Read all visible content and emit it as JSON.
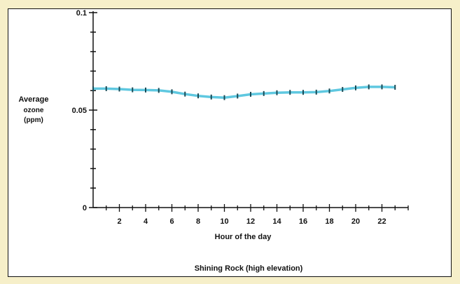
{
  "chart_data": {
    "type": "line",
    "title": "",
    "caption": "Shining Rock (high elevation)",
    "xlabel": "Hour of the day",
    "ylabel_lines": [
      "Average",
      "ozone",
      "(ppm)"
    ],
    "xlim": [
      0,
      24
    ],
    "ylim": [
      0,
      0.1
    ],
    "x_ticks": [
      2,
      4,
      6,
      8,
      10,
      12,
      14,
      16,
      18,
      20,
      22
    ],
    "y_tick_labels": [
      {
        "value": 0,
        "label": "0"
      },
      {
        "value": 0.05,
        "label": "0.05"
      },
      {
        "value": 0.1,
        "label": "0.1"
      }
    ],
    "y_minor_step": 0.01,
    "grid": false,
    "series": [
      {
        "x": [
          0,
          1,
          2,
          3,
          4,
          5,
          6,
          7,
          8,
          9,
          10,
          11,
          12,
          13,
          14,
          15,
          16,
          17,
          18,
          19,
          20,
          21,
          22,
          23
        ],
        "y": [
          0.061,
          0.061,
          0.0608,
          0.0604,
          0.0603,
          0.0601,
          0.0594,
          0.0582,
          0.0573,
          0.0567,
          0.0564,
          0.0572,
          0.0581,
          0.0585,
          0.0589,
          0.0591,
          0.0591,
          0.0592,
          0.0598,
          0.0606,
          0.0614,
          0.0619,
          0.0619,
          0.0617
        ]
      }
    ],
    "colors": {
      "line": "#5fc8e0",
      "marker": "#1a4a55",
      "axis": "#111111"
    }
  }
}
